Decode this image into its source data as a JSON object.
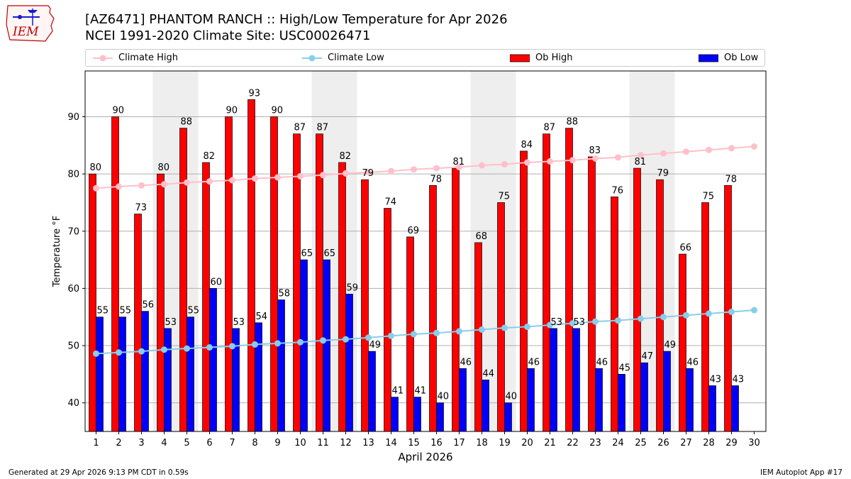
{
  "header": {
    "title_line1": "[AZ6471] PHANTOM RANCH :: High/Low Temperature for Apr 2026",
    "title_line2": "NCEI 1991-2020 Climate Site: USC00026471",
    "logo_text": "IEM"
  },
  "footer": {
    "generated": "Generated at 29 Apr 2026 9:13 PM CDT in 0.59s",
    "app": "IEM Autoplot App #17"
  },
  "colors": {
    "ob_high": "#ff0000",
    "ob_low": "#0000ff",
    "climate_high": "#ffc0cb",
    "climate_low": "#87ceeb",
    "weekend_shade": "#eeeeee"
  },
  "chart_data": {
    "type": "bar",
    "xlabel": "April 2026",
    "ylabel": "Temperature °F",
    "ylim": [
      35,
      98
    ],
    "yticks": [
      40,
      50,
      60,
      70,
      80,
      90
    ],
    "grid": "horizontal",
    "legend_position": "top",
    "days": [
      1,
      2,
      3,
      4,
      5,
      6,
      7,
      8,
      9,
      10,
      11,
      12,
      13,
      14,
      15,
      16,
      17,
      18,
      19,
      20,
      21,
      22,
      23,
      24,
      25,
      26,
      27,
      28,
      29,
      30
    ],
    "shaded_days": [
      4,
      5,
      11,
      12,
      18,
      19,
      25,
      26
    ],
    "series": [
      {
        "name": "Climate High",
        "kind": "line",
        "values": [
          77.5,
          77.8,
          78.0,
          78.2,
          78.5,
          78.7,
          78.9,
          79.2,
          79.4,
          79.6,
          79.8,
          80.1,
          80.3,
          80.5,
          80.8,
          81.0,
          81.2,
          81.5,
          81.7,
          82.0,
          82.2,
          82.4,
          82.7,
          82.9,
          83.3,
          83.6,
          83.9,
          84.2,
          84.5,
          84.8
        ]
      },
      {
        "name": "Climate Low",
        "kind": "line",
        "values": [
          48.6,
          48.8,
          49.0,
          49.3,
          49.5,
          49.7,
          49.9,
          50.2,
          50.4,
          50.6,
          50.9,
          51.1,
          51.4,
          51.7,
          52.0,
          52.2,
          52.5,
          52.8,
          53.1,
          53.3,
          53.6,
          53.9,
          54.2,
          54.4,
          54.7,
          55.0,
          55.3,
          55.6,
          55.9,
          56.2
        ]
      },
      {
        "name": "Ob High",
        "kind": "bar",
        "values": [
          80,
          90,
          73,
          80,
          88,
          82,
          90,
          93,
          90,
          87,
          87,
          82,
          79,
          74,
          69,
          78,
          81,
          68,
          75,
          84,
          87,
          88,
          83,
          76,
          81,
          79,
          66,
          75,
          78,
          null
        ]
      },
      {
        "name": "Ob Low",
        "kind": "bar",
        "values": [
          55,
          55,
          56,
          53,
          55,
          60,
          53,
          54,
          58,
          65,
          65,
          59,
          49,
          41,
          41,
          40,
          46,
          44,
          40,
          46,
          53,
          53,
          46,
          45,
          47,
          49,
          46,
          43,
          43,
          null
        ]
      }
    ]
  }
}
